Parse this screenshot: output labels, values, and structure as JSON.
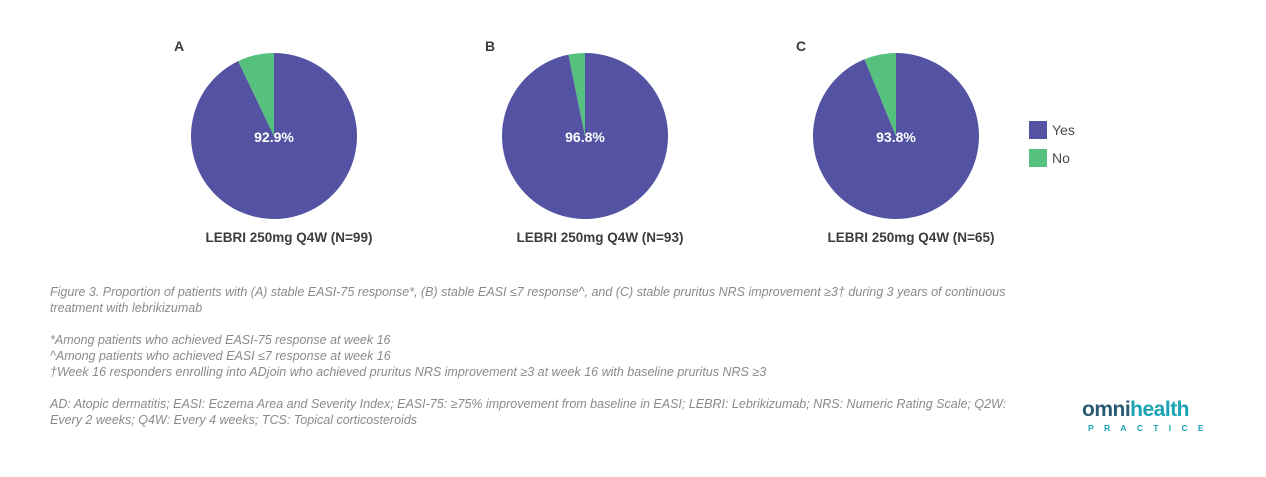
{
  "chart_data": [
    {
      "type": "pie",
      "panel_label": "A",
      "caption": "LEBRI 250mg Q4W (N=99)",
      "slices": [
        {
          "name": "Yes",
          "value": 92.9,
          "label": "92.9%"
        },
        {
          "name": "No",
          "value": 7.1,
          "label": ""
        }
      ]
    },
    {
      "type": "pie",
      "panel_label": "B",
      "caption": "LEBRI 250mg Q4W (N=93)",
      "slices": [
        {
          "name": "Yes",
          "value": 96.8,
          "label": "96.8%"
        },
        {
          "name": "No",
          "value": 3.2,
          "label": ""
        }
      ]
    },
    {
      "type": "pie",
      "panel_label": "C",
      "caption": "LEBRI 250mg Q4W (N=65)",
      "slices": [
        {
          "name": "Yes",
          "value": 93.8,
          "label": "93.8%"
        },
        {
          "name": "No",
          "value": 6.2,
          "label": ""
        }
      ]
    }
  ],
  "legend": {
    "placement": "right",
    "items": [
      {
        "name": "Yes",
        "color": "#5352a3"
      },
      {
        "name": "No",
        "color": "#56c07f"
      }
    ]
  },
  "figure_caption": "Figure 3. Proportion of patients with (A) stable EASI-75 response*, (B) stable EASI ≤7 response^, and (C) stable pruritus NRS improvement ≥3† during 3 years of continuous treatment with lebrikizumab",
  "footnotes": [
    "*Among patients who achieved EASI-75 response at week 16",
    "^Among patients who achieved EASI ≤7 response at week 16",
    "†Week 16 responders enrolling into ADjoin who achieved pruritus NRS improvement ≥3 at week 16 with baseline pruritus NRS ≥3"
  ],
  "abbreviations": "AD: Atopic dermatitis; EASI: Eczema Area and Severity Index; EASI-75: ≥75% improvement from baseline in EASI; LEBRI: Lebrikizumab; NRS: Numeric Rating Scale; Q2W: Every 2 weeks; Q4W: Every 4 weeks; TCS: Topical corticosteroids",
  "logo": {
    "prefix": "omni",
    "suffix": "health",
    "tagline": "PRACTICE"
  }
}
